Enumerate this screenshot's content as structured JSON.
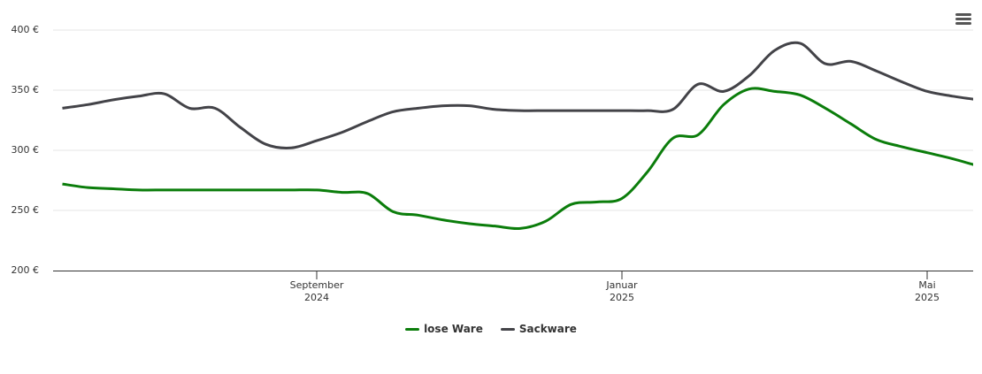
{
  "chart_data": {
    "type": "line",
    "categories": [
      null,
      null,
      null,
      null,
      null,
      null,
      null,
      null,
      null,
      null,
      "September\n2024",
      null,
      null,
      null,
      null,
      null,
      null,
      null,
      null,
      null,
      null,
      null,
      "Januar\n2025",
      null,
      null,
      null,
      null,
      null,
      null,
      null,
      null,
      null,
      null,
      null,
      "Mai\n2025",
      null,
      null
    ],
    "series": [
      {
        "name": "lose Ware",
        "color": "#0b7d0b",
        "values": [
          272,
          269,
          268,
          267,
          267,
          267,
          267,
          267,
          267,
          267,
          267,
          265,
          264,
          249,
          246,
          242,
          239,
          237,
          235,
          241,
          255,
          257,
          260,
          282,
          310,
          313,
          338,
          351,
          349,
          346,
          335,
          322,
          309,
          303,
          298,
          293,
          287
        ]
      },
      {
        "name": "Sackware",
        "color": "#434348",
        "values": [
          335,
          338,
          342,
          345,
          347,
          335,
          335,
          319,
          305,
          302,
          308,
          315,
          324,
          332,
          335,
          337,
          337,
          334,
          333,
          333,
          333,
          333,
          333,
          333,
          334,
          355,
          349,
          362,
          383,
          389,
          372,
          374,
          366,
          357,
          349,
          345,
          342
        ]
      }
    ],
    "ylim": [
      200,
      400
    ],
    "yticks": [
      {
        "value": 200,
        "label": "200 €"
      },
      {
        "value": 250,
        "label": "250 €"
      },
      {
        "value": 300,
        "label": "300 €"
      },
      {
        "value": 350,
        "label": "350 €"
      },
      {
        "value": 400,
        "label": "400 €"
      }
    ],
    "grid": true
  }
}
